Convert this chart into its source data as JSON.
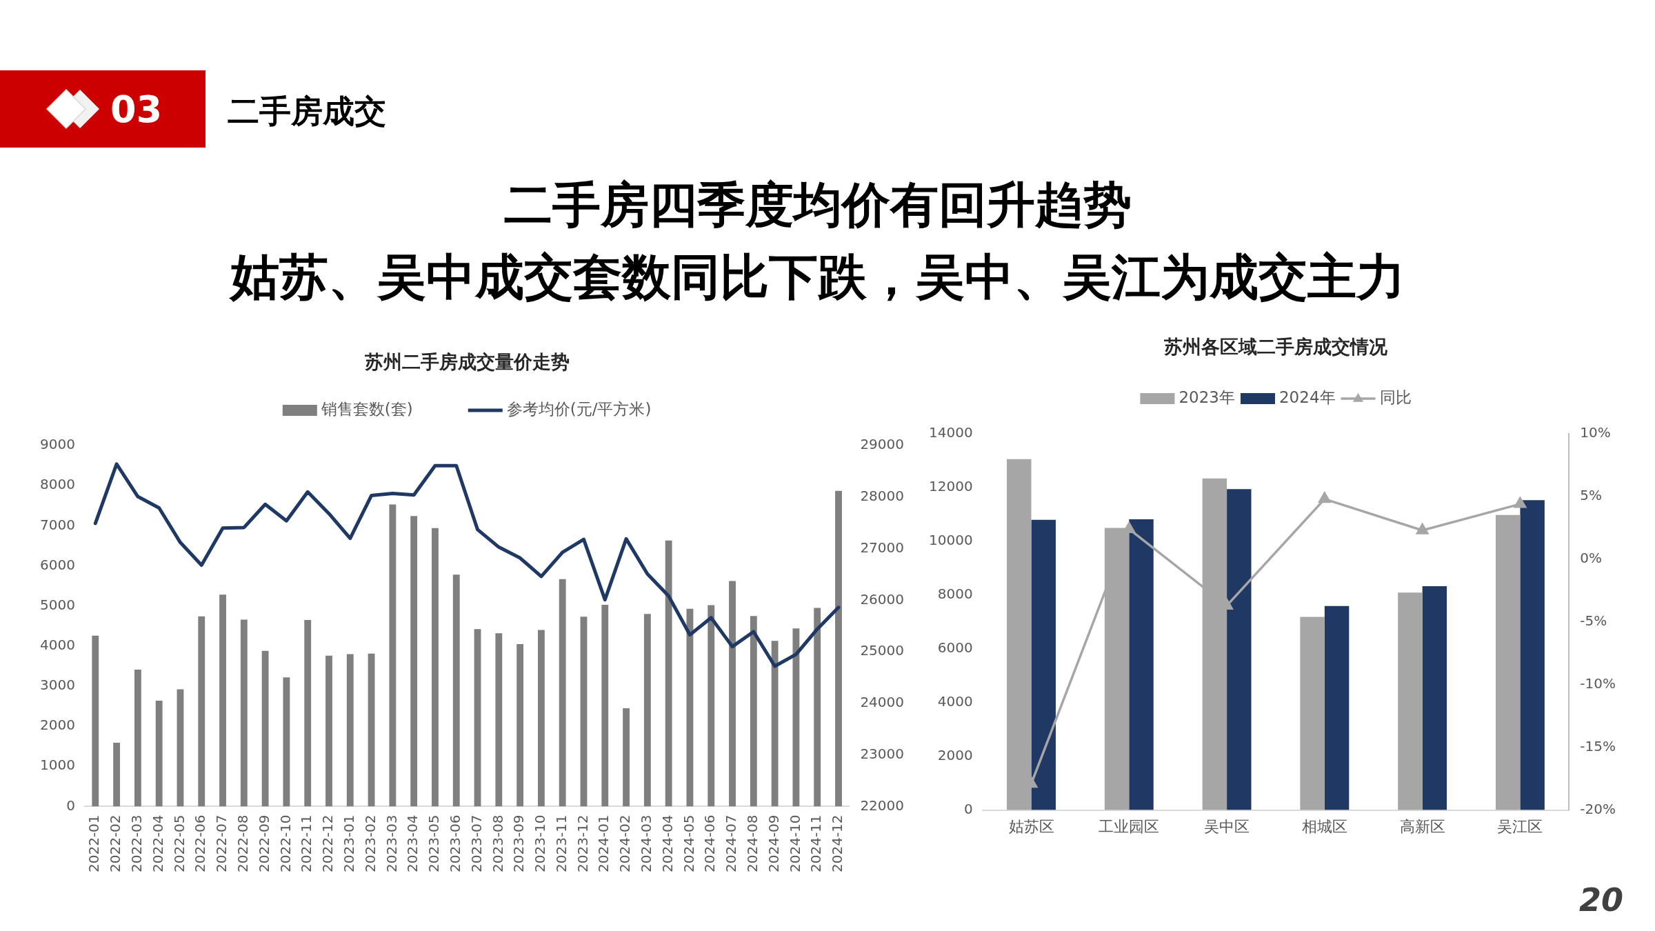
{
  "chart_data": [
    {
      "type": "other",
      "title": "二手房四季度均价有回升趋势",
      "subtitle": "姑苏、吴中成交套数同比下跌，吴中、吴江为成交主力",
      "annotations": [
        "03",
        "二手房成交",
        "20"
      ]
    },
    {
      "type": "bar",
      "title": "苏州二手房成交量价走势",
      "categories": [
        "2022-01",
        "2022-02",
        "2022-03",
        "2022-04",
        "2022-05",
        "2022-06",
        "2022-07",
        "2022-08",
        "2022-09",
        "2022-10",
        "2022-11",
        "2022-12",
        "2023-01",
        "2023-02",
        "2023-03",
        "2023-04",
        "2023-05",
        "2023-06",
        "2023-07",
        "2023-08",
        "2023-09",
        "2023-10",
        "2023-11",
        "2023-12",
        "2024-01",
        "2024-02",
        "2024-03",
        "2024-04",
        "2024-05",
        "2024-06",
        "2024-07",
        "2024-08",
        "2024-09",
        "2024-10",
        "2024-11",
        "2024-12"
      ],
      "series": [
        {
          "name": "销售套数(套)",
          "type": "bar",
          "color": "#7f7f7f",
          "values": [
            4260,
            1590,
            3410,
            2640,
            2920,
            4740,
            5280,
            4660,
            3880,
            3220,
            4650,
            3760,
            3800,
            3810,
            7530,
            7240,
            6940,
            5780,
            4420,
            4320,
            4050,
            4400,
            5670,
            4730,
            5030,
            2450,
            4800,
            6630,
            4930,
            5020,
            5620,
            4750,
            4130,
            4440,
            4950,
            7870
          ]
        },
        {
          "name": "参考均价(元/平方米)",
          "type": "line",
          "axis": "y2",
          "color": "#1f3864",
          "values": [
            27490,
            28640,
            28010,
            27790,
            27120,
            26680,
            27400,
            27410,
            27860,
            27540,
            28100,
            27680,
            27200,
            28030,
            28070,
            28040,
            28610,
            28610,
            27370,
            27030,
            26820,
            26460,
            26930,
            27180,
            26010,
            27190,
            26510,
            26080,
            25330,
            25660,
            25100,
            25390,
            24720,
            24950,
            25440,
            25860
          ]
        }
      ],
      "ylim": [
        0,
        9000
      ],
      "yticks": [
        0,
        1000,
        2000,
        3000,
        4000,
        5000,
        6000,
        7000,
        8000,
        9000
      ],
      "y2lim": [
        22000,
        29000
      ],
      "y2ticks": [
        22000,
        23000,
        24000,
        25000,
        26000,
        27000,
        28000,
        29000
      ],
      "legend": "top",
      "grid": false,
      "marker": "none"
    },
    {
      "type": "bar",
      "title": "苏州各区域二手房成交情况",
      "categories": [
        "姑苏区",
        "工业园区",
        "吴中区",
        "相城区",
        "高新区",
        "吴江区"
      ],
      "series": [
        {
          "name": "2023年",
          "color": "#a6a6a6",
          "values": [
            13060,
            10500,
            12340,
            7190,
            8090,
            10980
          ]
        },
        {
          "name": "2024年",
          "color": "#1f3864",
          "values": [
            10800,
            10820,
            11940,
            7590,
            8330,
            11530
          ]
        },
        {
          "name": "同比",
          "type": "line",
          "axis": "y2",
          "color": "#a6a6a6",
          "values": [
            -17.9,
            2.4,
            -3.7,
            4.8,
            2.3,
            4.4
          ]
        }
      ],
      "ylim": [
        0,
        14000
      ],
      "yticks": [
        0,
        2000,
        4000,
        6000,
        8000,
        10000,
        12000,
        14000
      ],
      "y2lim": [
        -20,
        10
      ],
      "y2ticks": [
        {
          "value": -20,
          "label": "-20%"
        },
        {
          "value": -15,
          "label": "-15%"
        },
        {
          "value": -10,
          "label": "-10%"
        },
        {
          "value": -5,
          "label": "-5%"
        },
        {
          "value": 0,
          "label": "0%"
        },
        {
          "value": 5,
          "label": "5%"
        },
        {
          "value": 10,
          "label": "10%"
        }
      ],
      "legend": "top",
      "grid": false,
      "marker": "triangle"
    }
  ]
}
